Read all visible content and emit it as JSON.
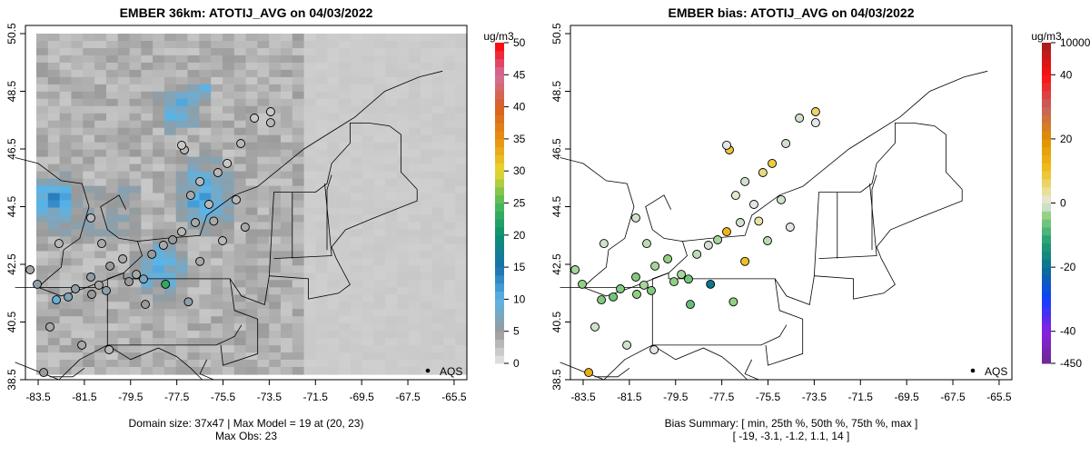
{
  "chart_data": [
    {
      "type": "map",
      "title": "EMBER 36km: ATOTIJ_AVG on 04/03/2022",
      "units": "ug/m3",
      "colorbar_ticks": [
        "0",
        "5",
        "10",
        "15",
        "20",
        "25",
        "30",
        "35",
        "40",
        "45",
        "50"
      ],
      "x_ticks": [
        "-83.5",
        "-81.5",
        "-79.5",
        "-77.5",
        "-75.5",
        "-73.5",
        "-71.5",
        "-69.5",
        "-67.5",
        "-65.5"
      ],
      "y_ticks": [
        "38.5",
        "40.5",
        "42.5",
        "44.5",
        "46.5",
        "48.5",
        "50.5"
      ],
      "xlim": [
        -84.5,
        -65
      ],
      "ylim": [
        38.5,
        50.8
      ],
      "legend_label": "AQS",
      "footer_line1": "Domain size: 37x47 | Max Model = 19 at (20, 23)",
      "footer_line2": "Max Obs: 23"
    },
    {
      "type": "map",
      "title": "EMBER bias: ATOTIJ_AVG on 04/03/2022",
      "units": "ug/m3",
      "colorbar_ticks": [
        "10000",
        "40",
        "20",
        "0",
        "-20",
        "-40",
        "-450"
      ],
      "x_ticks": [
        "-83.5",
        "-81.5",
        "-79.5",
        "-77.5",
        "-75.5",
        "-73.5",
        "-71.5",
        "-69.5",
        "-67.5",
        "-65.5"
      ],
      "y_ticks": [
        "38.5",
        "40.5",
        "42.5",
        "44.5",
        "46.5",
        "48.5",
        "50.5"
      ],
      "legend_label": "AQS",
      "footer_line1": "Bias Summary: [ min, 25th %, 50th %, 75th %, max ]",
      "footer_line2": "[ -19,   -3.1,   -1.2,   1.1,   14 ]"
    }
  ],
  "sites": [
    [
      -83.85,
      42.31,
      4,
      -3
    ],
    [
      -83.54,
      41.81,
      6,
      -4
    ],
    [
      -82.71,
      41.27,
      9,
      -5
    ],
    [
      -82.2,
      41.37,
      7,
      -6
    ],
    [
      -81.89,
      41.65,
      6,
      -5
    ],
    [
      -81.18,
      41.46,
      5,
      -4
    ],
    [
      -80.87,
      41.78,
      4,
      -3
    ],
    [
      -80.55,
      41.59,
      6,
      -5
    ],
    [
      -79.57,
      41.9,
      5,
      -4
    ],
    [
      -79.25,
      42.15,
      4,
      -3
    ],
    [
      -78.94,
      41.99,
      7,
      -6
    ],
    [
      -78.58,
      42.85,
      5,
      -2
    ],
    [
      -78.08,
      43.16,
      4,
      -1
    ],
    [
      -77.68,
      43.35,
      5,
      -3
    ],
    [
      -77.29,
      43.63,
      3,
      12
    ],
    [
      -76.7,
      43.95,
      4,
      -1
    ],
    [
      -76.11,
      44.58,
      3,
      0
    ],
    [
      -76.9,
      44.89,
      4,
      1
    ],
    [
      -76.5,
      45.37,
      3,
      -1
    ],
    [
      -75.72,
      45.68,
      3,
      5
    ],
    [
      -75.32,
      46.0,
      2,
      8
    ],
    [
      -74.93,
      44.74,
      3,
      -1
    ],
    [
      -74.54,
      43.79,
      4,
      0
    ],
    [
      -75.52,
      43.32,
      3,
      -2
    ],
    [
      -79.84,
      42.69,
      4,
      -4
    ],
    [
      -80.39,
      42.44,
      5,
      -3
    ],
    [
      -80.75,
      43.22,
      4,
      -2
    ],
    [
      -82.6,
      43.22,
      3,
      -1
    ],
    [
      -81.22,
      44.11,
      3,
      -1
    ],
    [
      -78.86,
      41.11,
      5,
      -7
    ],
    [
      -77.99,
      41.81,
      23,
      -19
    ],
    [
      -81.61,
      39.7,
      4,
      -1
    ],
    [
      -80.43,
      39.54,
      3,
      0
    ],
    [
      -83.26,
      38.75,
      5,
      14
    ],
    [
      -77.17,
      46.47,
      3,
      9
    ],
    [
      -77.29,
      46.63,
      2,
      0
    ],
    [
      -74.73,
      46.69,
      3,
      -1
    ],
    [
      -74.14,
      47.57,
      2,
      -1
    ],
    [
      -73.44,
      47.41,
      3,
      0
    ],
    [
      -73.44,
      47.79,
      2,
      6
    ],
    [
      -82.99,
      40.33,
      4,
      -1
    ],
    [
      -81.22,
      42.06,
      6,
      -5
    ],
    [
      -76.5,
      42.6,
      4,
      10
    ],
    [
      -77.0,
      41.2,
      6,
      -4
    ],
    [
      -75.9,
      44.0,
      4,
      3
    ]
  ]
}
